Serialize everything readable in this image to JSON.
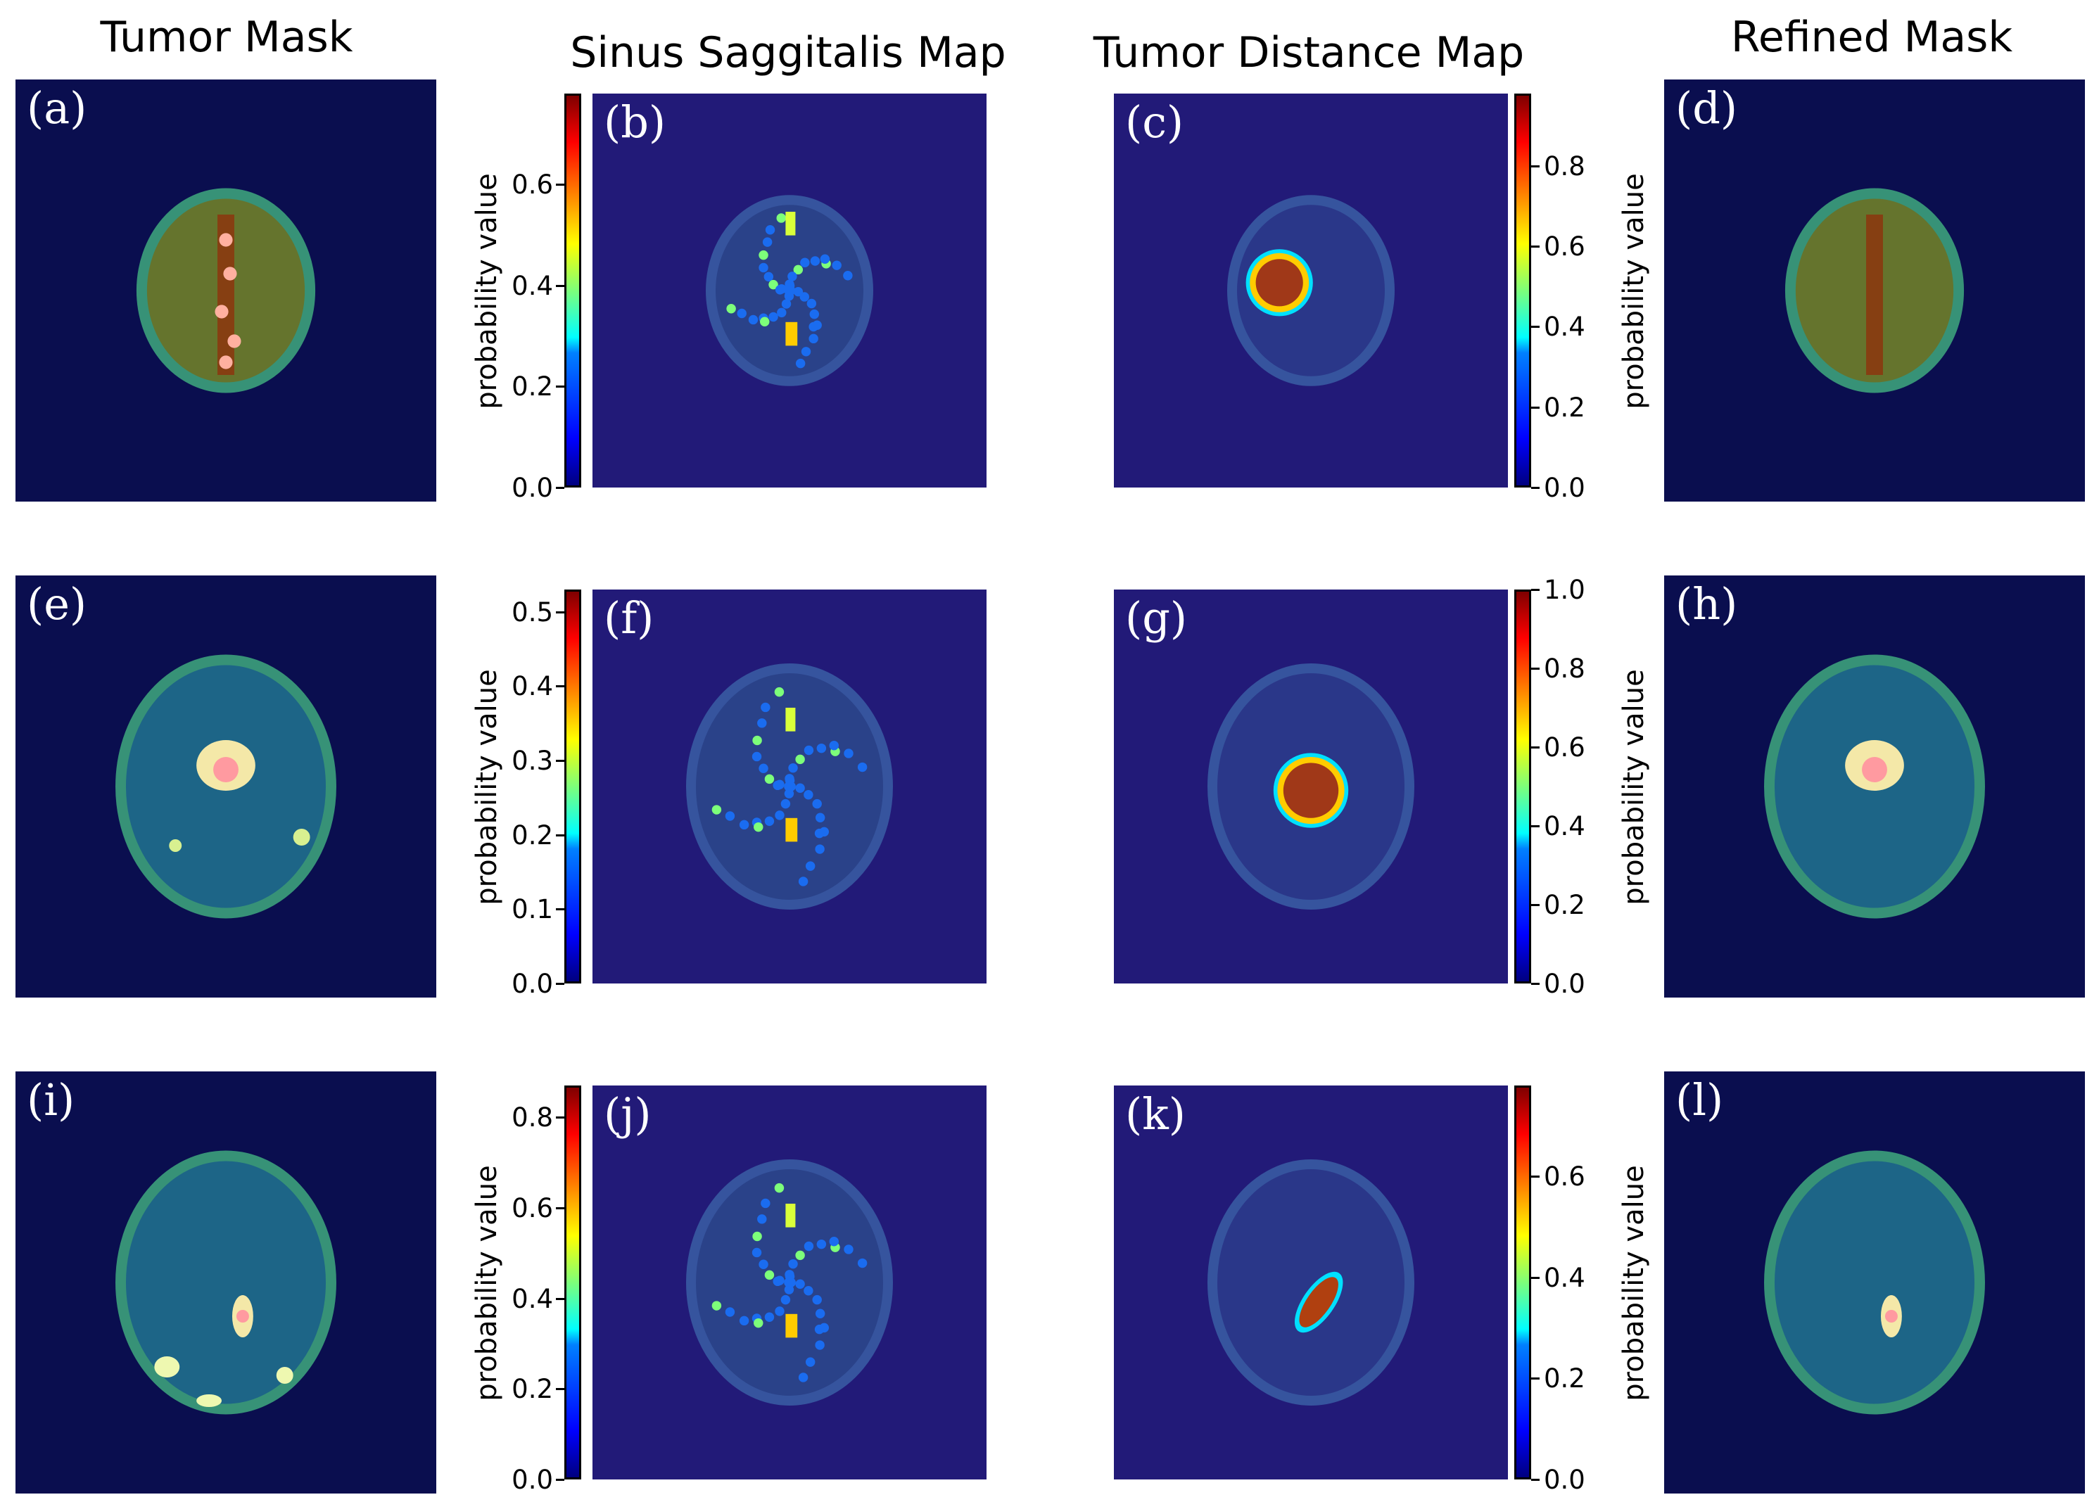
{
  "columns": {
    "tumor_mask": "Tumor Mask",
    "sinus_map": "Sinus Saggitalis Map",
    "distance_map": "Tumor Distance Map",
    "refined_mask": "Refined Mask"
  },
  "panels": {
    "a": "(a)",
    "b": "(b)",
    "c": "(c)",
    "d": "(d)",
    "e": "(e)",
    "f": "(f)",
    "g": "(g)",
    "h": "(h)",
    "i": "(i)",
    "j": "(j)",
    "k": "(k)",
    "l": "(l)"
  },
  "colorbar_label": "probability value",
  "colorbars": {
    "b": [
      "0.0",
      "0.2",
      "0.4",
      "0.6"
    ],
    "c": [
      "0.0",
      "0.2",
      "0.4",
      "0.6",
      "0.8"
    ],
    "f": [
      "0.0",
      "0.1",
      "0.2",
      "0.3",
      "0.4",
      "0.5"
    ],
    "g": [
      "0.0",
      "0.2",
      "0.4",
      "0.6",
      "0.8",
      "1.0"
    ],
    "j": [
      "0.0",
      "0.2",
      "0.4",
      "0.6",
      "0.8"
    ],
    "k": [
      "0.0",
      "0.2",
      "0.4",
      "0.6"
    ]
  },
  "colorbar_max": {
    "b": 0.78,
    "c": 0.98,
    "f": 0.53,
    "g": 1.0,
    "j": 0.87,
    "k": 0.78
  },
  "colors": {
    "background_navy": "#0a0e4f",
    "map_background": "#221a78",
    "jet_colormap": [
      "#00007f",
      "#0000ff",
      "#00ffff",
      "#ffff00",
      "#ff0000",
      "#7f0000"
    ]
  }
}
